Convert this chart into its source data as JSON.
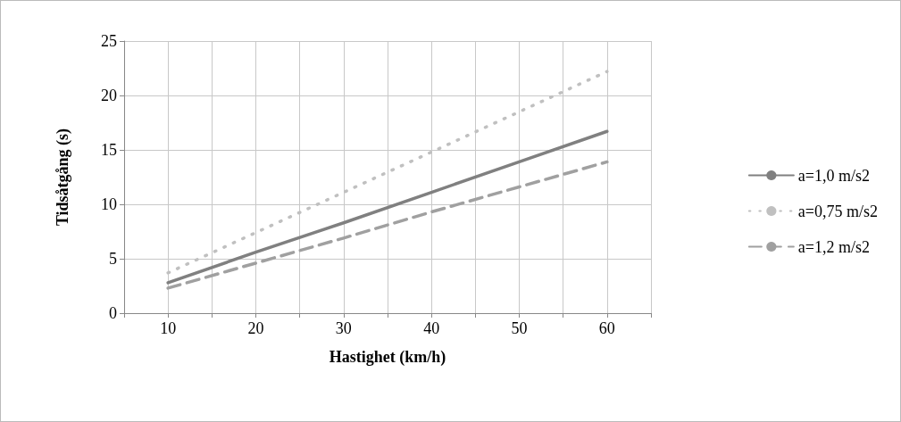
{
  "chart_data": {
    "type": "line",
    "xlabel": "Hastighet (km/h)",
    "ylabel": "Tidsåtgång (s)",
    "x": [
      10,
      20,
      30,
      40,
      50,
      60
    ],
    "series": [
      {
        "name": "a=1,0 m/s2",
        "color": "#808080",
        "line_style": "solid",
        "values": [
          2.8,
          5.6,
          8.3,
          11.1,
          13.9,
          16.7
        ]
      },
      {
        "name": "a=0,75 m/s2",
        "color": "#c0c0c0",
        "line_style": "dotted",
        "values": [
          3.7,
          7.4,
          11.1,
          14.8,
          18.5,
          22.2
        ]
      },
      {
        "name": "a=1,2 m/s2",
        "color": "#a0a0a0",
        "line_style": "dashed",
        "values": [
          2.3,
          4.6,
          6.9,
          9.3,
          11.6,
          13.9
        ]
      }
    ],
    "xlim": [
      5,
      65
    ],
    "xticks": [
      {
        "value": 5,
        "label": null
      },
      10,
      {
        "value": 15,
        "label": null
      },
      20,
      {
        "value": 25,
        "label": null
      },
      30,
      {
        "value": 35,
        "label": null
      },
      40,
      {
        "value": 45,
        "label": null
      },
      50,
      {
        "value": 55,
        "label": null
      },
      60,
      {
        "value": 65,
        "label": null
      }
    ],
    "ylim": [
      0,
      25
    ],
    "yticks": [
      0,
      5,
      10,
      15,
      20,
      25
    ],
    "grid": true,
    "legend": "right",
    "marker": "none"
  }
}
